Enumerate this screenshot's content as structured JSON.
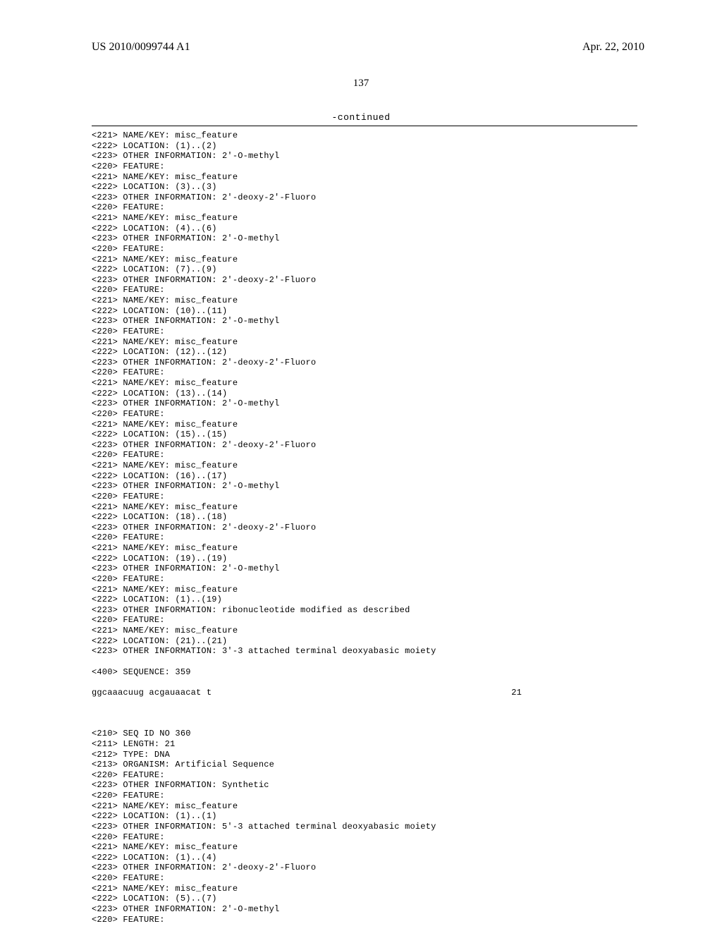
{
  "header": {
    "pub_number": "US 2010/0099744 A1",
    "pub_date": "Apr. 22, 2010"
  },
  "page_number": "137",
  "continued_label": "-continued",
  "seq359": {
    "features": [
      {
        "tag221": "<221> NAME/KEY: misc_feature",
        "tag222": "<222> LOCATION: (1)..(2)",
        "tag223": "<223> OTHER INFORMATION: 2'-O-methyl"
      },
      {
        "tag220": "<220> FEATURE:",
        "tag221": "<221> NAME/KEY: misc_feature",
        "tag222": "<222> LOCATION: (3)..(3)",
        "tag223": "<223> OTHER INFORMATION: 2'-deoxy-2'-Fluoro"
      },
      {
        "tag220": "<220> FEATURE:",
        "tag221": "<221> NAME/KEY: misc_feature",
        "tag222": "<222> LOCATION: (4)..(6)",
        "tag223": "<223> OTHER INFORMATION: 2'-O-methyl"
      },
      {
        "tag220": "<220> FEATURE:",
        "tag221": "<221> NAME/KEY: misc_feature",
        "tag222": "<222> LOCATION: (7)..(9)",
        "tag223": "<223> OTHER INFORMATION: 2'-deoxy-2'-Fluoro"
      },
      {
        "tag220": "<220> FEATURE:",
        "tag221": "<221> NAME/KEY: misc_feature",
        "tag222": "<222> LOCATION: (10)..(11)",
        "tag223": "<223> OTHER INFORMATION: 2'-O-methyl"
      },
      {
        "tag220": "<220> FEATURE:",
        "tag221": "<221> NAME/KEY: misc_feature",
        "tag222": "<222> LOCATION: (12)..(12)",
        "tag223": "<223> OTHER INFORMATION: 2'-deoxy-2'-Fluoro"
      },
      {
        "tag220": "<220> FEATURE:",
        "tag221": "<221> NAME/KEY: misc_feature",
        "tag222": "<222> LOCATION: (13)..(14)",
        "tag223": "<223> OTHER INFORMATION: 2'-O-methyl"
      },
      {
        "tag220": "<220> FEATURE:",
        "tag221": "<221> NAME/KEY: misc_feature",
        "tag222": "<222> LOCATION: (15)..(15)",
        "tag223": "<223> OTHER INFORMATION: 2'-deoxy-2'-Fluoro"
      },
      {
        "tag220": "<220> FEATURE:",
        "tag221": "<221> NAME/KEY: misc_feature",
        "tag222": "<222> LOCATION: (16)..(17)",
        "tag223": "<223> OTHER INFORMATION: 2'-O-methyl"
      },
      {
        "tag220": "<220> FEATURE:",
        "tag221": "<221> NAME/KEY: misc_feature",
        "tag222": "<222> LOCATION: (18)..(18)",
        "tag223": "<223> OTHER INFORMATION: 2'-deoxy-2'-Fluoro"
      },
      {
        "tag220": "<220> FEATURE:",
        "tag221": "<221> NAME/KEY: misc_feature",
        "tag222": "<222> LOCATION: (19)..(19)",
        "tag223": "<223> OTHER INFORMATION: 2'-O-methyl"
      },
      {
        "tag220": "<220> FEATURE:",
        "tag221": "<221> NAME/KEY: misc_feature",
        "tag222": "<222> LOCATION: (1)..(19)",
        "tag223": "<223> OTHER INFORMATION: ribonucleotide modified as described"
      },
      {
        "tag220": "<220> FEATURE:",
        "tag221": "<221> NAME/KEY: misc_feature",
        "tag222": "<222> LOCATION: (21)..(21)",
        "tag223": "<223> OTHER INFORMATION: 3'-3 attached terminal deoxyabasic moiety"
      }
    ],
    "seq_tag": "<400> SEQUENCE: 359",
    "sequence": "ggcaaacuug acgauaacat t",
    "length_num": "21"
  },
  "seq360": {
    "header": [
      "<210> SEQ ID NO 360",
      "<211> LENGTH: 21",
      "<212> TYPE: DNA",
      "<213> ORGANISM: Artificial Sequence",
      "<220> FEATURE:",
      "<223> OTHER INFORMATION: Synthetic"
    ],
    "features": [
      {
        "tag220": "<220> FEATURE:",
        "tag221": "<221> NAME/KEY: misc_feature",
        "tag222": "<222> LOCATION: (1)..(1)",
        "tag223": "<223> OTHER INFORMATION: 5'-3 attached terminal deoxyabasic moiety"
      },
      {
        "tag220": "<220> FEATURE:",
        "tag221": "<221> NAME/KEY: misc_feature",
        "tag222": "<222> LOCATION: (1)..(4)",
        "tag223": "<223> OTHER INFORMATION: 2'-deoxy-2'-Fluoro"
      },
      {
        "tag220": "<220> FEATURE:",
        "tag221": "<221> NAME/KEY: misc_feature",
        "tag222": "<222> LOCATION: (5)..(7)",
        "tag223": "<223> OTHER INFORMATION: 2'-O-methyl"
      }
    ],
    "trailing": "<220> FEATURE:"
  }
}
